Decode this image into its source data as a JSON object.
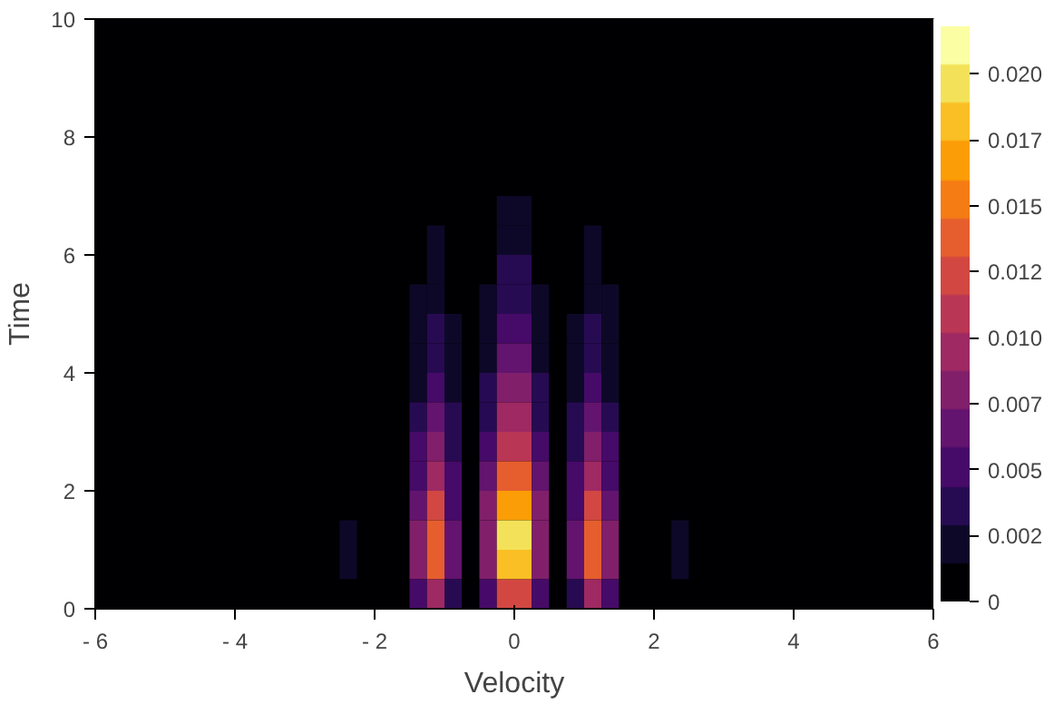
{
  "chart_data": {
    "type": "heatmap",
    "xlabel": "Velocity",
    "ylabel": "Time",
    "x": [
      -5.875,
      -5.625,
      -5.375,
      -5.125,
      -4.875,
      -4.625,
      -4.375,
      -4.125,
      -3.875,
      -3.625,
      -3.375,
      -3.125,
      -2.875,
      -2.625,
      -2.375,
      -2.125,
      -1.875,
      -1.625,
      -1.375,
      -1.125,
      -0.875,
      -0.625,
      -0.375,
      -0.125,
      0.125,
      0.375,
      0.625,
      0.875,
      1.125,
      1.375,
      1.625,
      1.875,
      2.125,
      2.375,
      2.625,
      2.875,
      3.125,
      3.375,
      3.625,
      3.875,
      4.125,
      4.375,
      4.625,
      4.875,
      5.125,
      5.375,
      5.625,
      5.875
    ],
    "y": [
      9.75,
      9.25,
      8.75,
      8.25,
      7.75,
      7.25,
      6.75,
      6.25,
      5.75,
      5.25,
      4.75,
      4.25,
      3.75,
      3.25,
      2.75,
      2.25,
      1.75,
      1.25,
      0.75,
      0.25
    ],
    "xlim": [
      -6,
      6
    ],
    "xticks": [
      {
        "value": -6,
        "label": "- 6"
      },
      {
        "value": -4,
        "label": "- 4"
      },
      {
        "value": -2,
        "label": "- 2"
      },
      0,
      2,
      4,
      6
    ],
    "ylim": [
      0,
      10
    ],
    "yticks": [
      0,
      2,
      4,
      6,
      8,
      10
    ],
    "clim": [
      0,
      0.0218
    ],
    "cticks": [
      0,
      {
        "value": 0.0025,
        "label": "0.002"
      },
      {
        "value": 0.005,
        "label": "0.005"
      },
      {
        "value": 0.0075,
        "label": "0.007"
      },
      {
        "value": 0.01,
        "label": "0.010"
      },
      {
        "value": 0.0125,
        "label": "0.012"
      },
      {
        "value": 0.015,
        "label": "0.015"
      },
      {
        "value": 0.0175,
        "label": "0.017"
      },
      {
        "value": 0.02,
        "label": "0.020"
      }
    ],
    "grid": false,
    "cells": [
      [
        0,
        0,
        0,
        0,
        0,
        0,
        0,
        0,
        0,
        0,
        0,
        0,
        0,
        0,
        0,
        0,
        0,
        0,
        0.0002,
        0.0003,
        0.0001,
        0,
        0.0002,
        0.0004,
        0.0004,
        0.0002,
        0,
        0.0001,
        0.0003,
        0.0002,
        0,
        0,
        0,
        0,
        0,
        0,
        0,
        0,
        0,
        0,
        0,
        0,
        0,
        0,
        0,
        0,
        0,
        0
      ],
      [
        0,
        0,
        0,
        0,
        0,
        0,
        0,
        0,
        0,
        0,
        0,
        0,
        0,
        0,
        0,
        0,
        0,
        0,
        0.0002,
        0.0004,
        0.0002,
        0,
        0.0002,
        0.0006,
        0.0006,
        0.0002,
        0,
        0.0002,
        0.0004,
        0.0002,
        0,
        0,
        0,
        0,
        0,
        0,
        0,
        0,
        0,
        0,
        0,
        0,
        0,
        0,
        0,
        0,
        0,
        0
      ],
      [
        0,
        0,
        0,
        0,
        0,
        0,
        0,
        0,
        0,
        0,
        0,
        0,
        0,
        0,
        0,
        0,
        0,
        0.0001,
        0.0003,
        0.0005,
        0.0002,
        0,
        0.0003,
        0.0007,
        0.0007,
        0.0003,
        0,
        0.0002,
        0.0005,
        0.0003,
        0.0001,
        0,
        0,
        0,
        0,
        0,
        0,
        0,
        0,
        0,
        0,
        0,
        0,
        0,
        0,
        0,
        0,
        0
      ],
      [
        0,
        0,
        0,
        0,
        0,
        0,
        0,
        0,
        0,
        0,
        0,
        0,
        0,
        0,
        0,
        0,
        0,
        0.0001,
        0.0003,
        0.0006,
        0.0003,
        0,
        0.0004,
        0.0009,
        0.0009,
        0.0004,
        0,
        0.0003,
        0.0006,
        0.0003,
        0.0001,
        0,
        0,
        0,
        0,
        0,
        0,
        0,
        0,
        0,
        0,
        0,
        0,
        0,
        0,
        0,
        0,
        0
      ],
      [
        0,
        0,
        0,
        0,
        0,
        0,
        0,
        0,
        0,
        0,
        0,
        0,
        0,
        0,
        0,
        0,
        0,
        0.0001,
        0.0004,
        0.0008,
        0.0004,
        0,
        0.0005,
        0.0011,
        0.0011,
        0.0005,
        0,
        0.0004,
        0.0008,
        0.0004,
        0.0001,
        0,
        0,
        0,
        0,
        0,
        0,
        0,
        0,
        0,
        0,
        0,
        0,
        0,
        0,
        0,
        0,
        0
      ],
      [
        0,
        0,
        0,
        0,
        0,
        0,
        0,
        0,
        0,
        0,
        0,
        0,
        0,
        0,
        0,
        0,
        0,
        0.0001,
        0.0006,
        0.001,
        0.0005,
        0,
        0.0006,
        0.0014,
        0.0014,
        0.0006,
        0,
        0.0005,
        0.001,
        0.0006,
        0.0001,
        0,
        0,
        0,
        0,
        0,
        0,
        0,
        0,
        0,
        0,
        0,
        0,
        0,
        0,
        0,
        0,
        0
      ],
      [
        0,
        0,
        0,
        0,
        0,
        0,
        0,
        0,
        0,
        0,
        0,
        0,
        0,
        0,
        0,
        0,
        0,
        0.0001,
        0.0007,
        0.0013,
        0.0006,
        0,
        0.0008,
        0.0018,
        0.0018,
        0.0008,
        0,
        0.0006,
        0.0013,
        0.0007,
        0.0001,
        0,
        0,
        0,
        0,
        0,
        0,
        0,
        0,
        0,
        0,
        0,
        0,
        0,
        0,
        0,
        0,
        0
      ],
      [
        0,
        0,
        0,
        0,
        0,
        0,
        0,
        0,
        0,
        0,
        0,
        0,
        0,
        0,
        0,
        0,
        0,
        0.0002,
        0.0009,
        0.0016,
        0.0007,
        0,
        0.001,
        0.0023,
        0.0023,
        0.001,
        0,
        0.0007,
        0.0016,
        0.0009,
        0.0002,
        0,
        0,
        0,
        0,
        0,
        0,
        0,
        0,
        0,
        0,
        0,
        0,
        0,
        0,
        0,
        0,
        0
      ],
      [
        0,
        0,
        0,
        0,
        0,
        0,
        0,
        0,
        0,
        0,
        0,
        0,
        0,
        0,
        0,
        0,
        0,
        0.0002,
        0.0012,
        0.0021,
        0.0009,
        0.0001,
        0.0013,
        0.003,
        0.003,
        0.0013,
        0.0001,
        0.0009,
        0.0021,
        0.0012,
        0.0002,
        0,
        0,
        0,
        0,
        0,
        0,
        0,
        0,
        0,
        0,
        0,
        0,
        0,
        0,
        0,
        0,
        0
      ],
      [
        0,
        0,
        0,
        0,
        0,
        0,
        0,
        0,
        0,
        0,
        0,
        0,
        0,
        0,
        0,
        0,
        0,
        0.0003,
        0.0015,
        0.0027,
        0.0012,
        0.0001,
        0.0017,
        0.0038,
        0.0038,
        0.0017,
        0.0001,
        0.0012,
        0.0027,
        0.0015,
        0.0003,
        0,
        0,
        0,
        0,
        0,
        0,
        0,
        0,
        0,
        0,
        0,
        0,
        0,
        0,
        0,
        0,
        0
      ],
      [
        0,
        0,
        0,
        0,
        0,
        0,
        0,
        0,
        0,
        0,
        0,
        0,
        0,
        0,
        0,
        0,
        0,
        0.0003,
        0.0018,
        0.0034,
        0.0015,
        0.0001,
        0.0021,
        0.0048,
        0.0048,
        0.0021,
        0.0001,
        0.0015,
        0.0034,
        0.0018,
        0.0003,
        0,
        0,
        0,
        0,
        0,
        0,
        0,
        0,
        0,
        0,
        0,
        0,
        0,
        0,
        0,
        0,
        0
      ],
      [
        0,
        0,
        0,
        0,
        0,
        0,
        0,
        0,
        0,
        0,
        0,
        0,
        0,
        0,
        0,
        0,
        0,
        0.0004,
        0.0023,
        0.0042,
        0.0019,
        0.0001,
        0.0026,
        0.0059,
        0.0059,
        0.0026,
        0.0001,
        0.0019,
        0.0042,
        0.0023,
        0.0004,
        0,
        0,
        0,
        0,
        0,
        0,
        0,
        0,
        0,
        0,
        0,
        0,
        0,
        0,
        0,
        0,
        0
      ],
      [
        0,
        0,
        0,
        0,
        0,
        0,
        0,
        0,
        0,
        0,
        0,
        0,
        0,
        0,
        0,
        0,
        0,
        0.0005,
        0.0029,
        0.0053,
        0.0024,
        0.0002,
        0.0033,
        0.0075,
        0.0075,
        0.0033,
        0.0002,
        0.0024,
        0.0053,
        0.0029,
        0.0005,
        0,
        0,
        0,
        0,
        0,
        0,
        0,
        0,
        0,
        0,
        0,
        0,
        0,
        0,
        0,
        0,
        0
      ],
      [
        0,
        0,
        0,
        0,
        0,
        0,
        0,
        0,
        0,
        0,
        0,
        0,
        0,
        0,
        0,
        0,
        0,
        0.0007,
        0.0036,
        0.0066,
        0.003,
        0.0002,
        0.0041,
        0.0093,
        0.0093,
        0.0041,
        0.0002,
        0.003,
        0.0066,
        0.0036,
        0.0007,
        0,
        0,
        0,
        0,
        0,
        0,
        0,
        0,
        0,
        0,
        0,
        0,
        0,
        0,
        0,
        0,
        0
      ],
      [
        0,
        0,
        0,
        0,
        0,
        0,
        0,
        0,
        0,
        0,
        0,
        0,
        0,
        0,
        0,
        0,
        0,
        0.0008,
        0.0045,
        0.0081,
        0.0037,
        0.0002,
        0.0051,
        0.0115,
        0.0115,
        0.0051,
        0.0002,
        0.0037,
        0.0081,
        0.0045,
        0.0008,
        0,
        0,
        0,
        0,
        0,
        0,
        0,
        0,
        0,
        0,
        0,
        0,
        0,
        0,
        0,
        0,
        0
      ],
      [
        0,
        0,
        0,
        0,
        0,
        0,
        0,
        0,
        0,
        0,
        0,
        0,
        0,
        0,
        0,
        0,
        0,
        0.001,
        0.0055,
        0.0099,
        0.0045,
        0.0003,
        0.0062,
        0.0141,
        0.0141,
        0.0062,
        0.0003,
        0.0045,
        0.0099,
        0.0055,
        0.001,
        0,
        0,
        0,
        0,
        0,
        0,
        0,
        0,
        0,
        0,
        0,
        0,
        0,
        0,
        0,
        0,
        0
      ],
      [
        0,
        0,
        0,
        0,
        0,
        0,
        0,
        0,
        0,
        0,
        0,
        0,
        0,
        0.0005,
        0.001,
        0,
        0,
        0.0012,
        0.0065,
        0.0119,
        0.0054,
        0.0003,
        0.0075,
        0.0168,
        0.0168,
        0.0075,
        0.0003,
        0.0054,
        0.0119,
        0.0065,
        0.0012,
        0,
        0,
        0.001,
        0.0005,
        0,
        0,
        0,
        0,
        0,
        0,
        0,
        0,
        0,
        0,
        0,
        0,
        0
      ],
      [
        0,
        0,
        0,
        0,
        0,
        0,
        0,
        0,
        0,
        0,
        0,
        0,
        0,
        0.0008,
        0.0015,
        0,
        0,
        0.0014,
        0.0075,
        0.0136,
        0.0061,
        0.0004,
        0.0085,
        0.0192,
        0.0192,
        0.0085,
        0.0004,
        0.0061,
        0.0136,
        0.0075,
        0.0014,
        0,
        0,
        0.0015,
        0.0008,
        0,
        0,
        0,
        0,
        0,
        0,
        0,
        0,
        0,
        0,
        0,
        0,
        0
      ],
      [
        0,
        0,
        0,
        0,
        0,
        0,
        0,
        0,
        0,
        0,
        0,
        0,
        0,
        0.0008,
        0.0015,
        0,
        0,
        0.0013,
        0.0073,
        0.0133,
        0.006,
        0.0004,
        0.0084,
        0.0188,
        0.0188,
        0.0084,
        0.0004,
        0.006,
        0.0133,
        0.0073,
        0.0013,
        0,
        0,
        0.0015,
        0.0008,
        0,
        0,
        0,
        0,
        0,
        0,
        0,
        0,
        0,
        0,
        0,
        0,
        0
      ],
      [
        0,
        0,
        0,
        0,
        0,
        0,
        0,
        0,
        0,
        0,
        0,
        0,
        0,
        0.0005,
        0.001,
        0,
        0,
        0.0009,
        0.005,
        0.0091,
        0.0041,
        0.0003,
        0.0057,
        0.0129,
        0.0129,
        0.0057,
        0.0003,
        0.0041,
        0.0091,
        0.005,
        0.0009,
        0,
        0,
        0.001,
        0.0005,
        0,
        0,
        0,
        0,
        0,
        0,
        0,
        0,
        0,
        0,
        0,
        0,
        0
      ]
    ]
  }
}
